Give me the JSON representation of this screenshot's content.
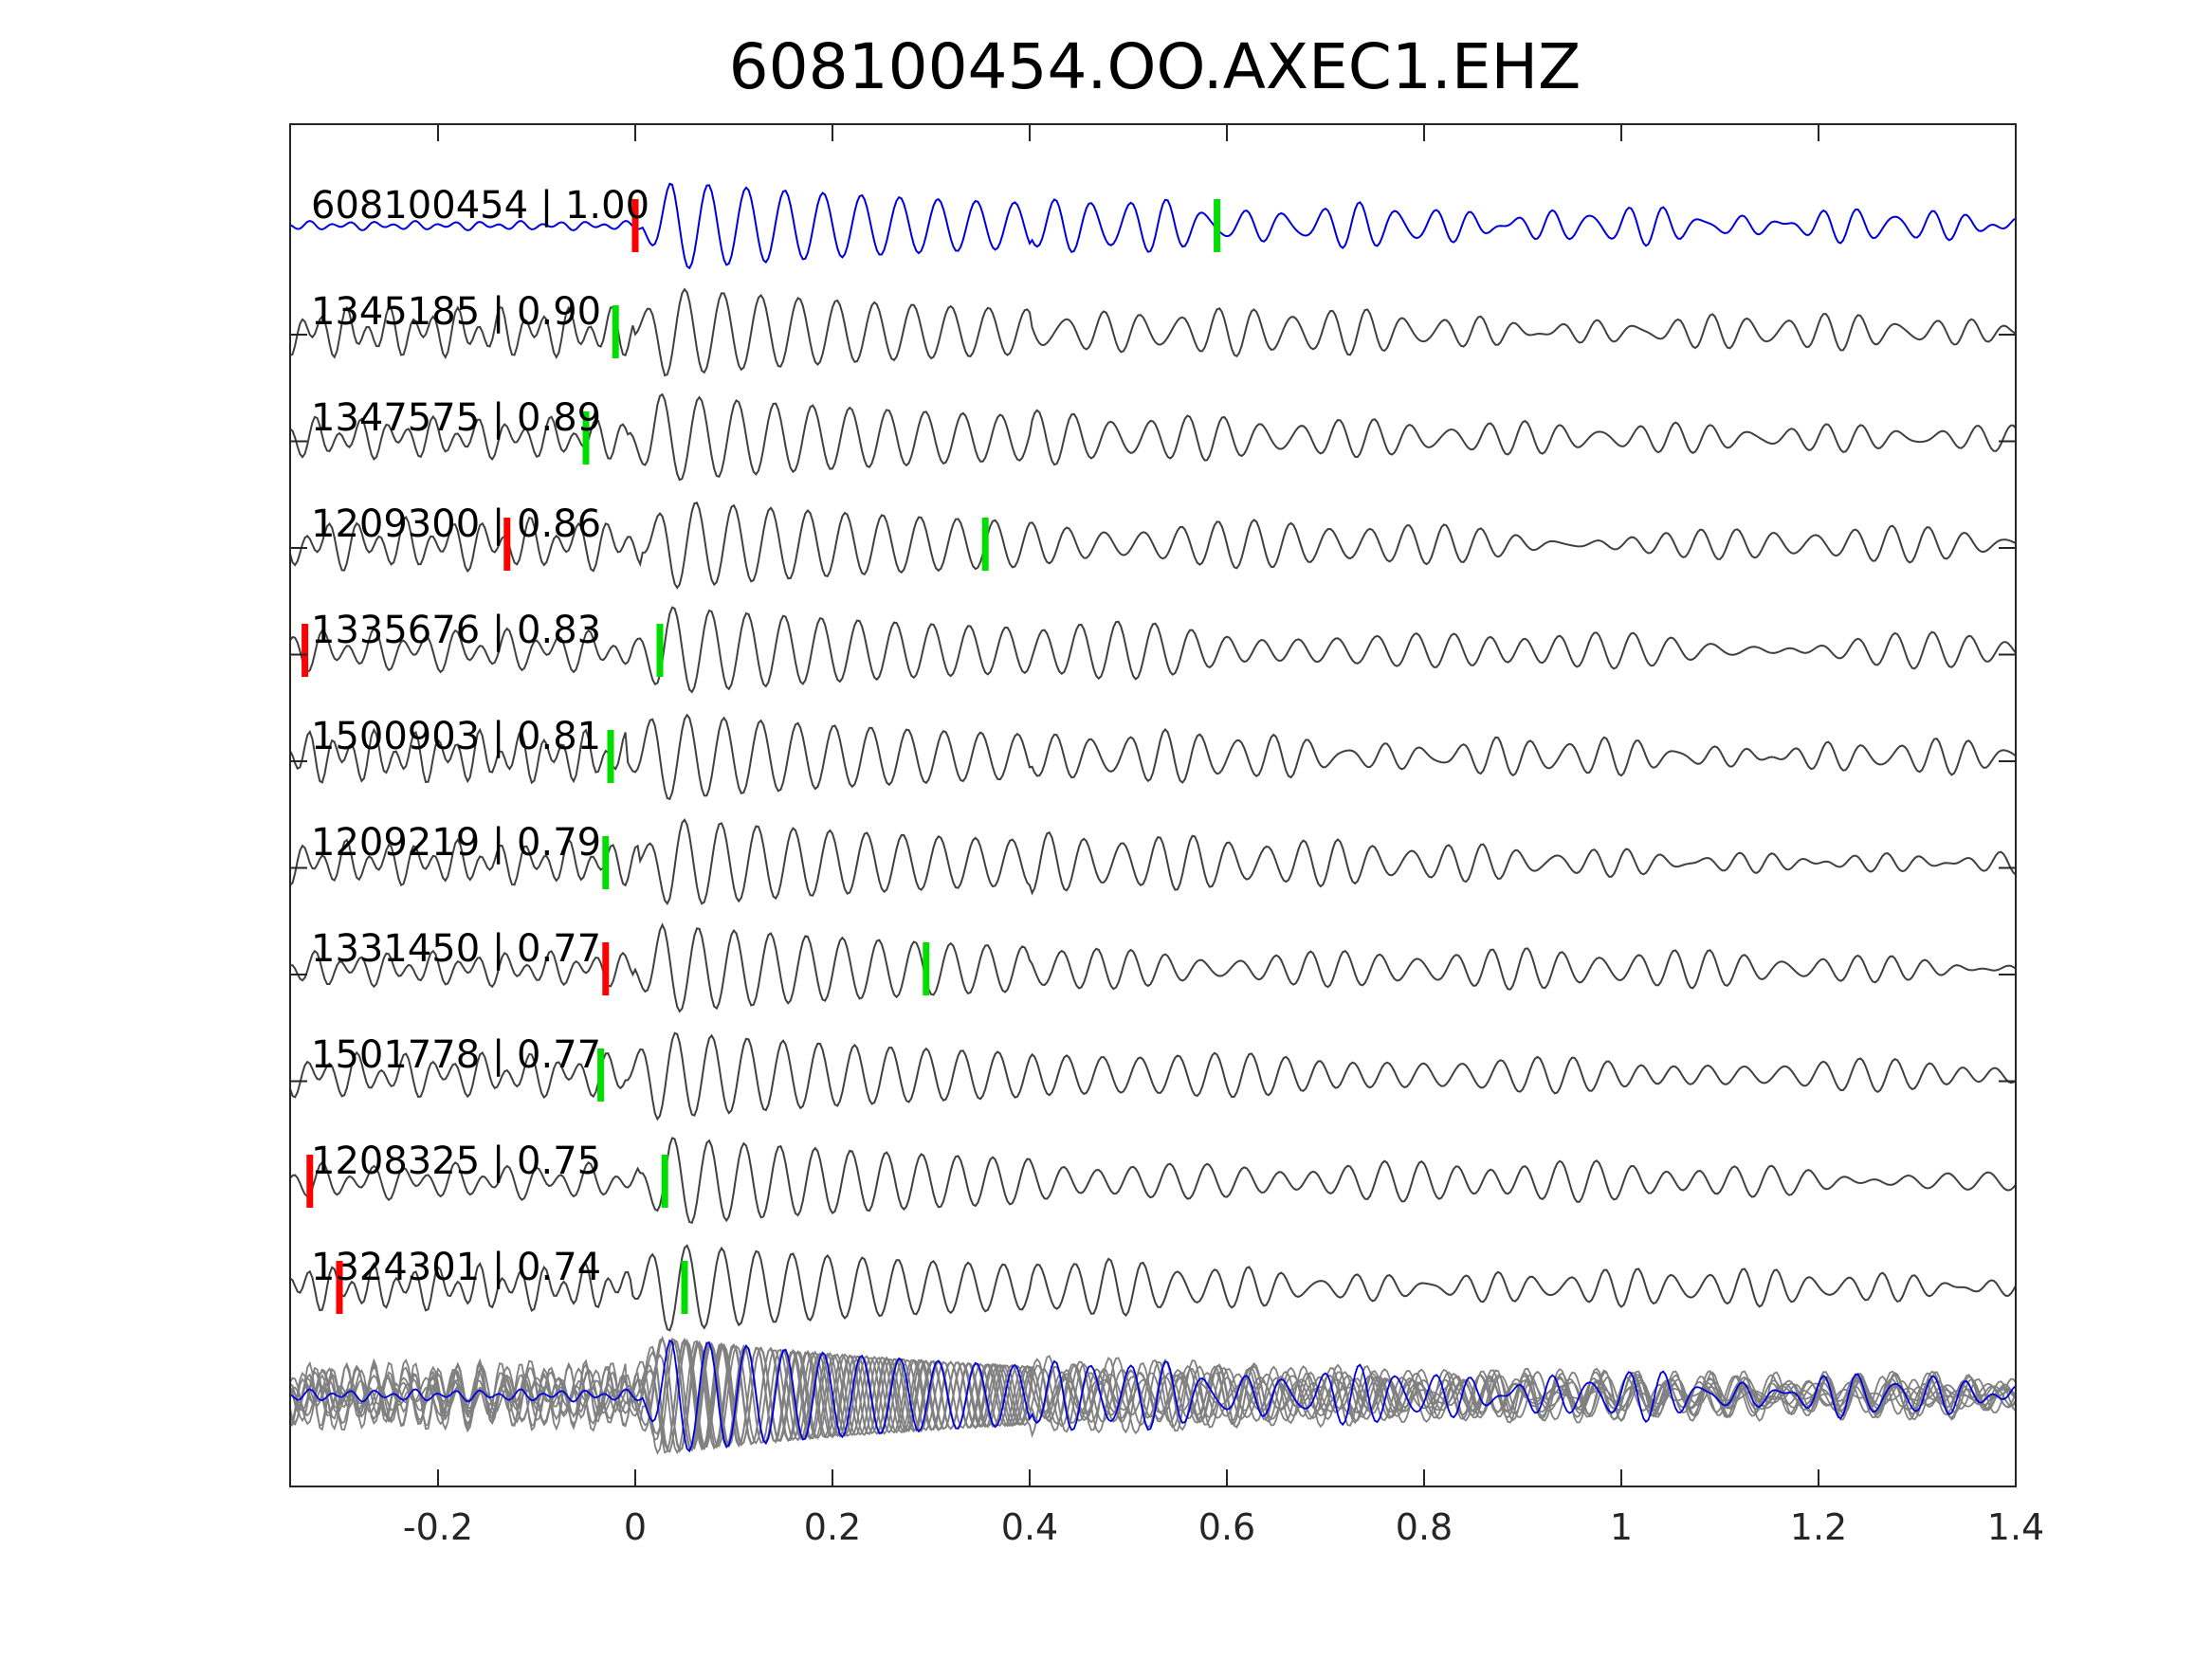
{
  "chart_data": {
    "type": "line",
    "title": "608100454.OO.AXEC1.EHZ",
    "xlabel": "",
    "ylabel": "",
    "xlim": [
      -0.35,
      1.4
    ],
    "xticks": [
      -0.2,
      0,
      0.2,
      0.4,
      0.6,
      0.8,
      1,
      1.2,
      1.4
    ],
    "xtick_labels": [
      "-0.2",
      "0",
      "0.2",
      "0.4",
      "0.6",
      "0.8",
      "1",
      "1.2",
      "1.4"
    ],
    "grid": false,
    "legend": "none",
    "colors": {
      "template": "#0000dd",
      "trace": "#404040",
      "stack_trace": "#808080",
      "p_pick": "#ff0000",
      "s_pick": "#00dd00",
      "axes": "#262626"
    },
    "traces": [
      {
        "id": "608100454",
        "cc": "1.00",
        "label": "608100454 | 1.00",
        "template": true,
        "red_pick": 0.0,
        "green_pick": 0.59
      },
      {
        "id": "1345185",
        "cc": "0.90",
        "label": "1345185 | 0.90",
        "red_pick": null,
        "green_pick": -0.02
      },
      {
        "id": "1347575",
        "cc": "0.89",
        "label": "1347575 | 0.89",
        "red_pick": null,
        "green_pick": -0.05
      },
      {
        "id": "1209300",
        "cc": "0.86",
        "label": "1209300 | 0.86",
        "red_pick": -0.13,
        "green_pick": 0.355
      },
      {
        "id": "1335676",
        "cc": "0.83",
        "label": "1335676 | 0.83",
        "red_pick": -0.335,
        "green_pick": 0.025
      },
      {
        "id": "1500903",
        "cc": "0.81",
        "label": "1500903 | 0.81",
        "red_pick": null,
        "green_pick": -0.025
      },
      {
        "id": "1209219",
        "cc": "0.79",
        "label": "1209219 | 0.79",
        "red_pick": null,
        "green_pick": -0.03
      },
      {
        "id": "1331450",
        "cc": "0.77",
        "label": "1331450 | 0.77",
        "red_pick": -0.03,
        "green_pick": 0.295
      },
      {
        "id": "1501778",
        "cc": "0.77",
        "label": "1501778 | 0.77",
        "red_pick": null,
        "green_pick": -0.035
      },
      {
        "id": "1208325",
        "cc": "0.75",
        "label": "1208325 | 0.75",
        "red_pick": -0.33,
        "green_pick": 0.03
      },
      {
        "id": "1324301",
        "cc": "0.74",
        "label": "1324301 | 0.74",
        "red_pick": -0.3,
        "green_pick": 0.05
      }
    ],
    "stack": {
      "note": ""
    }
  }
}
